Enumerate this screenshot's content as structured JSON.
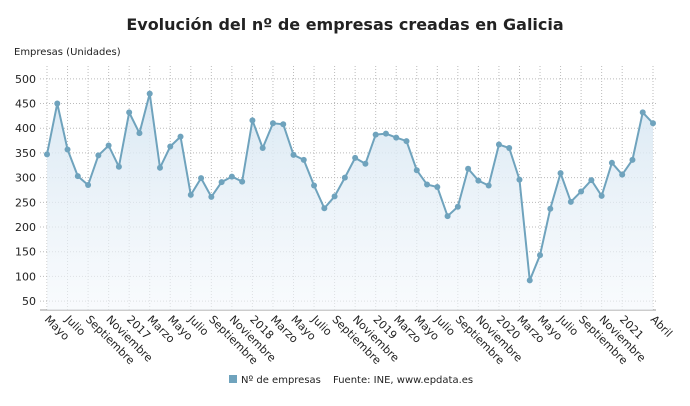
{
  "chart_data": {
    "type": "line",
    "title": "Evolución del nº de empresas creadas en Galicia",
    "y_label": "Empresas (Unidades)",
    "source": "Fuente: INE, www.epdata.es",
    "categories": [
      "Mayo",
      null,
      "Julio",
      null,
      "Septiembre",
      null,
      "Noviembre",
      null,
      "2017",
      null,
      "Marzo",
      null,
      "Mayo",
      null,
      "Julio",
      null,
      "Septiembre",
      null,
      "Noviembre",
      null,
      "2018",
      null,
      "Marzo",
      null,
      "Mayo",
      null,
      "Julio",
      null,
      "Septiembre",
      null,
      "Noviembre",
      null,
      "2019",
      null,
      "Marzo",
      null,
      "Mayo",
      null,
      "Julio",
      null,
      "Septiembre",
      null,
      "Noviembre",
      null,
      "2020",
      null,
      "Marzo",
      null,
      "Mayo",
      null,
      "Julio",
      null,
      "Septiembre",
      null,
      "Noviembre",
      null,
      "2021",
      null,
      null,
      "Abril"
    ],
    "series": [
      {
        "name": "Nº de empresas",
        "color": "#6fa3bd",
        "values": [
          347,
          450,
          357,
          303,
          285,
          345,
          365,
          322,
          432,
          390,
          470,
          320,
          363,
          383,
          265,
          299,
          261,
          291,
          302,
          292,
          416,
          360,
          410,
          408,
          346,
          336,
          284,
          238,
          262,
          300,
          340,
          328,
          387,
          389,
          381,
          374,
          315,
          286,
          281,
          222,
          241,
          318,
          294,
          284,
          367,
          360,
          296,
          92,
          143,
          237,
          309,
          251,
          272,
          295,
          263,
          330,
          306,
          336,
          432,
          410
        ]
      }
    ],
    "ylim": [
      32,
      526
    ],
    "yticks": [
      50,
      100,
      150,
      200,
      250,
      300,
      350,
      400,
      450,
      500
    ],
    "grid": true
  }
}
